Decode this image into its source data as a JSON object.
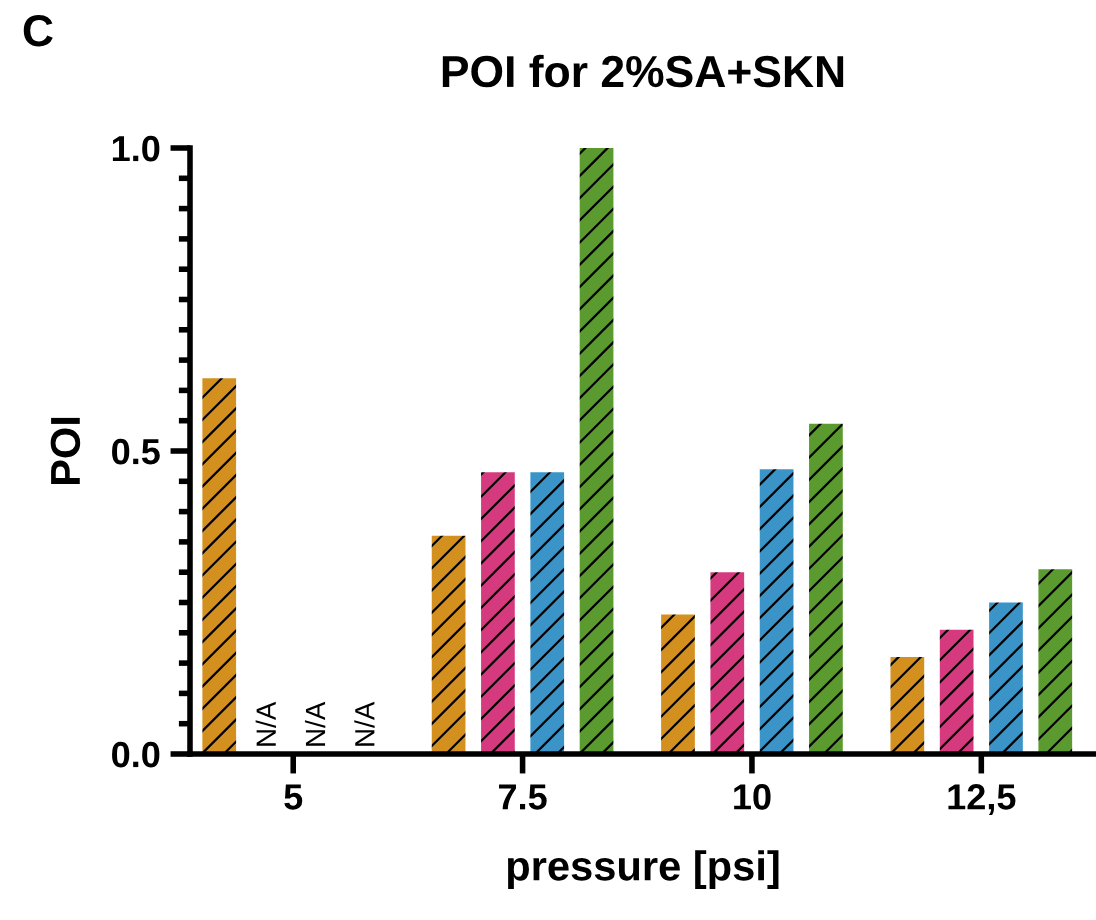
{
  "chart_data": {
    "type": "bar",
    "title": "POI for 2%SA+SKN",
    "xlabel": "pressure [psi]",
    "ylabel": "POI",
    "annotations": [
      "C"
    ],
    "categories": [
      "5",
      "7.5",
      "10",
      "12,5"
    ],
    "series": [
      {
        "color": "#d4901e",
        "values": [
          0.62,
          0.36,
          0.23,
          0.16
        ]
      },
      {
        "color": "#d63a7e",
        "values": [
          null,
          0.465,
          0.3,
          0.205
        ],
        "value_labels": [
          "N/A",
          null,
          null,
          null
        ]
      },
      {
        "color": "#3a94c8",
        "values": [
          null,
          0.465,
          0.47,
          0.25
        ],
        "value_labels": [
          "N/A",
          null,
          null,
          null
        ]
      },
      {
        "color": "#5a9a2e",
        "values": [
          null,
          1.0,
          0.545,
          0.305
        ],
        "value_labels": [
          "N/A",
          null,
          null,
          null
        ]
      }
    ],
    "ylim": [
      0,
      1.0
    ],
    "yticks": [
      {
        "value": 0,
        "label": "0.0"
      },
      {
        "value": 0.5,
        "label": "0.5"
      },
      {
        "value": 1.0,
        "label": "1.0"
      }
    ],
    "grid": false,
    "legend": false
  }
}
